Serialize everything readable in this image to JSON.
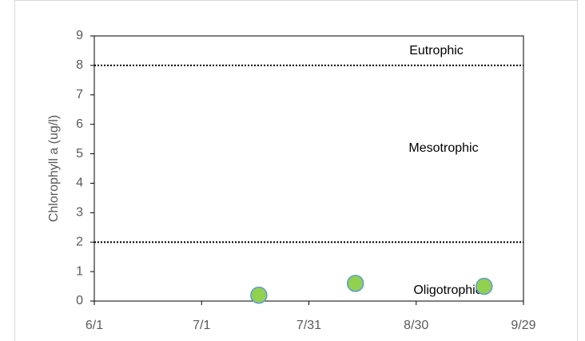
{
  "chart_data": {
    "type": "scatter",
    "ylabel": "Chlorophyll a (ug/l)",
    "x": [
      "7/17",
      "8/13",
      "9/18"
    ],
    "series": [
      {
        "name": "Chlorophyll a",
        "color": "#92d050",
        "edge_color": "#5b9bd5",
        "values": [
          0.2,
          0.6,
          0.5
        ]
      }
    ],
    "xlim": [
      "6/1",
      "9/29"
    ],
    "xticks": [
      "6/1",
      "7/1",
      "7/31",
      "8/30",
      "9/29"
    ],
    "ylim": [
      0,
      9
    ],
    "yticks": [
      0,
      1,
      2,
      3,
      4,
      5,
      6,
      7,
      8,
      9
    ],
    "reference_lines": [
      8,
      2
    ],
    "annotations": [
      "Eutrophic",
      "Mesotrophic",
      "Oligotrophic"
    ]
  }
}
